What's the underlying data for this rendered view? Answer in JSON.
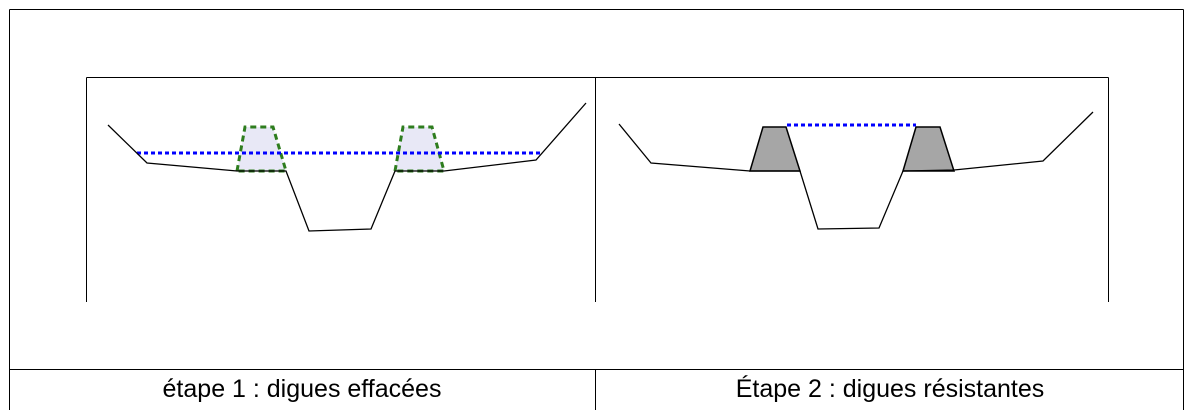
{
  "captions": {
    "step1": "étape 1 : digues effacées",
    "step2": "Étape 2 : digues résistantes"
  },
  "colors": {
    "border": "#000000",
    "water_level": "#0000ff",
    "erased_dike_outline": "#2e7d1e",
    "erased_dike_fill": "#e8e8f6",
    "resistant_dike_fill": "#a6a6a6",
    "terrain": "#000000"
  }
}
